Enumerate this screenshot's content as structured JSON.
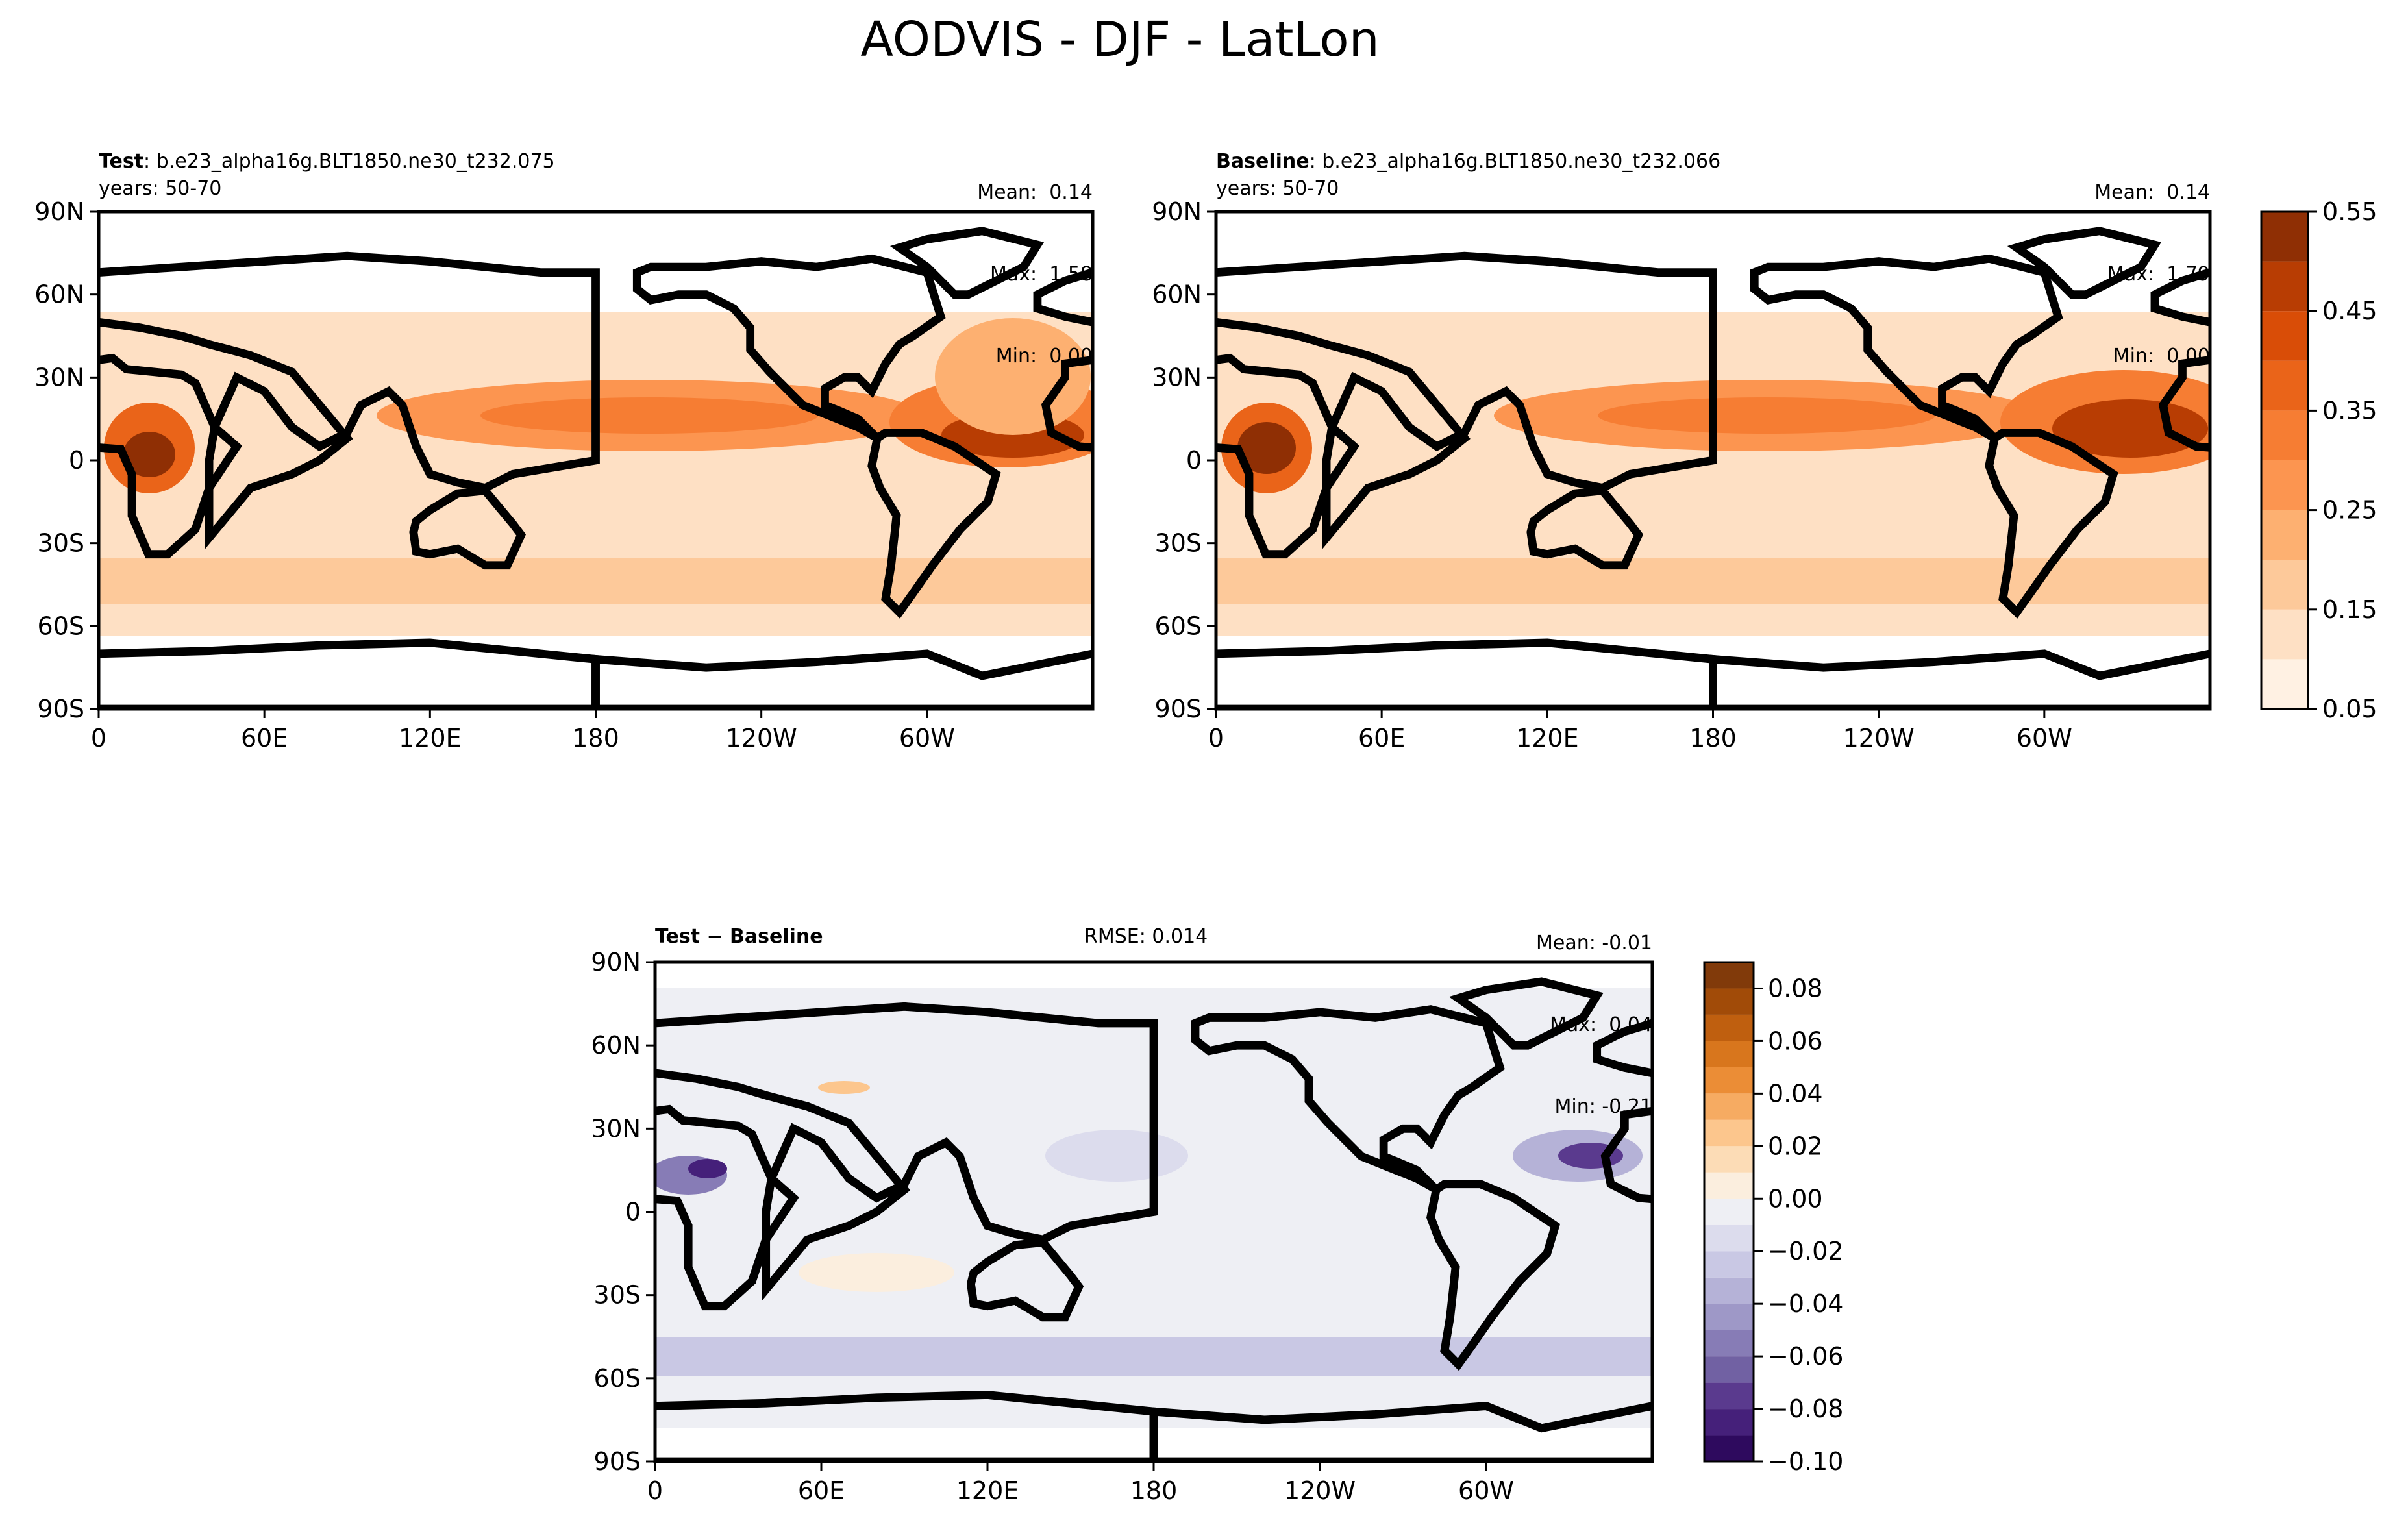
{
  "figure": {
    "title": "AODVIS - DJF - LatLon"
  },
  "panels": [
    {
      "id": "test",
      "label_bold": "Test",
      "label_rest": ": b.e23_alpha16g.BLT1850.ne30_t232.075",
      "years": "years: 50-70",
      "stats": {
        "mean": "Mean:  0.14",
        "max": "Max:  1.58",
        "min": "Min:  0.00"
      }
    },
    {
      "id": "baseline",
      "label_bold": "Baseline",
      "label_rest": ": b.e23_alpha16g.BLT1850.ne30_t232.066",
      "years": "years: 50-70",
      "stats": {
        "mean": "Mean:  0.14",
        "max": "Max:  1.79",
        "min": "Min:  0.00"
      }
    },
    {
      "id": "diff",
      "label_bold": "Test − Baseline",
      "rmse": "RMSE: 0.014",
      "stats": {
        "mean": "Mean: -0.01",
        "max": "Max:  0.04",
        "min": "Min: -0.21"
      }
    }
  ],
  "chart_data": [
    {
      "type": "heatmap",
      "title": "Test",
      "projection": "PlateCarree",
      "x_ticks": [
        "0",
        "60E",
        "120E",
        "180",
        "120W",
        "60W"
      ],
      "y_ticks": [
        "90N",
        "60N",
        "30N",
        "0",
        "30S",
        "60S",
        "90S"
      ],
      "xlim": [
        0,
        360
      ],
      "ylim": [
        -90,
        90
      ],
      "features": [
        "Saharan dust plume max near 0-20E, 5N",
        "tropical Atlantic max near 30W, 5N",
        "Asian outflow band 10-30N",
        "southern ocean band 40-50S"
      ],
      "colorbar": "shared",
      "colormap": "Oranges"
    },
    {
      "type": "heatmap",
      "title": "Baseline",
      "projection": "PlateCarree",
      "x_ticks": [
        "0",
        "60E",
        "120E",
        "180",
        "120W",
        "60W"
      ],
      "y_ticks": [
        "90N",
        "60N",
        "30N",
        "0",
        "30S",
        "60S",
        "90S"
      ],
      "xlim": [
        0,
        360
      ],
      "ylim": [
        -90,
        90
      ],
      "colorbar": "shared",
      "colormap": "Oranges",
      "colorbar_ticks": [
        "0.05",
        "0.15",
        "0.25",
        "0.35",
        "0.45",
        "0.55"
      ],
      "levels": [
        0.05,
        0.1,
        0.15,
        0.2,
        0.25,
        0.3,
        0.35,
        0.4,
        0.45,
        0.5,
        0.55
      ],
      "level_colors": [
        "#fff1e3",
        "#fee0c4",
        "#fdc99a",
        "#fdb071",
        "#fc9550",
        "#f67d33",
        "#ea6419",
        "#d94d07",
        "#b83d03",
        "#8f2f04"
      ]
    },
    {
      "type": "heatmap",
      "title": "Test − Baseline",
      "projection": "PlateCarree",
      "x_ticks": [
        "0",
        "60E",
        "120E",
        "180",
        "120W",
        "60W"
      ],
      "y_ticks": [
        "90N",
        "60N",
        "30N",
        "0",
        "30S",
        "60S",
        "90S"
      ],
      "xlim": [
        0,
        360
      ],
      "ylim": [
        -90,
        90
      ],
      "colormap": "PuOr_r",
      "colorbar_ticks": [
        "0.08",
        "0.06",
        "0.04",
        "0.02",
        "0.00",
        "−0.02",
        "−0.04",
        "−0.06",
        "−0.08",
        "−0.10"
      ],
      "levels": [
        -0.1,
        -0.09,
        -0.08,
        -0.07,
        -0.06,
        -0.05,
        -0.04,
        -0.03,
        -0.02,
        -0.01,
        0,
        0.01,
        0.02,
        0.03,
        0.04,
        0.05,
        0.06,
        0.07,
        0.08,
        0.09
      ],
      "level_colors": [
        "#2e0a5e",
        "#45207a",
        "#5a3a8e",
        "#7161a3",
        "#877cb6",
        "#9e98c7",
        "#b5b2d7",
        "#c9c8e4",
        "#dcdced",
        "#eeeff4",
        "#fbeede",
        "#fcdcb6",
        "#fcc68d",
        "#f6ab62",
        "#eb8d36",
        "#d8761d",
        "#bf5f0f",
        "#a14b08",
        "#813a0a"
      ]
    }
  ]
}
